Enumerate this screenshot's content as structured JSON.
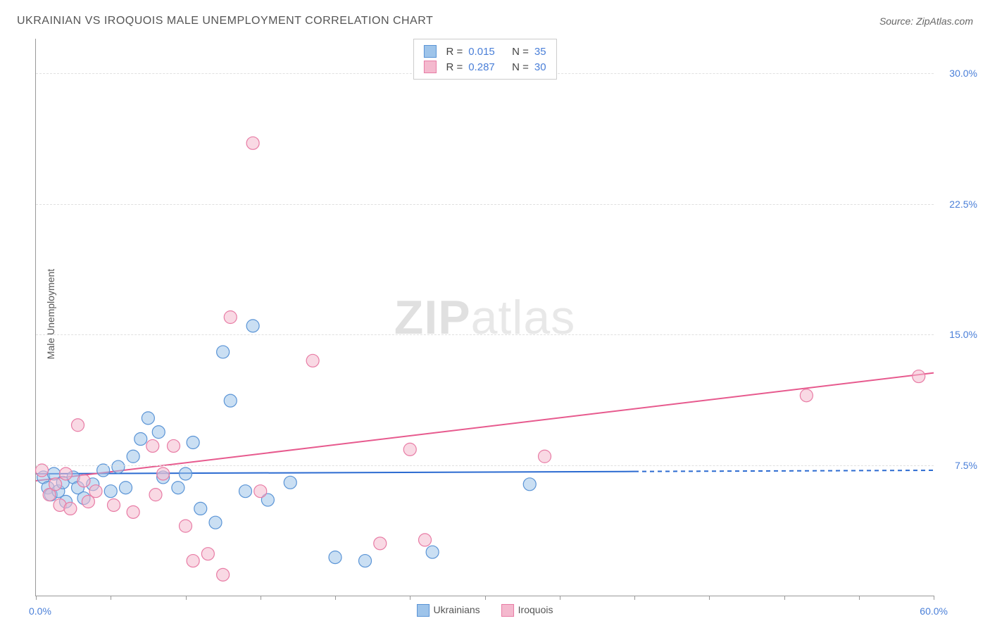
{
  "header": {
    "title": "UKRAINIAN VS IROQUOIS MALE UNEMPLOYMENT CORRELATION CHART",
    "source": "Source: ZipAtlas.com"
  },
  "watermark": {
    "bold": "ZIP",
    "rest": "atlas"
  },
  "chart": {
    "type": "scatter",
    "ylabel": "Male Unemployment",
    "xlim": [
      0,
      60
    ],
    "ylim": [
      0,
      32
    ],
    "background_color": "#ffffff",
    "grid_color": "#e0e0e0",
    "axis_color": "#999999",
    "label_color": "#4a7fd8",
    "yticks": [
      {
        "v": 7.5,
        "label": "7.5%"
      },
      {
        "v": 15.0,
        "label": "15.0%"
      },
      {
        "v": 22.5,
        "label": "22.5%"
      },
      {
        "v": 30.0,
        "label": "30.0%"
      }
    ],
    "xticks_positions": [
      0,
      5,
      10,
      15,
      20,
      25,
      30,
      35,
      40,
      45,
      50,
      55,
      60
    ],
    "xlabel_min": "0.0%",
    "xlabel_max": "60.0%",
    "marker_radius": 9,
    "marker_opacity": 0.55,
    "series": [
      {
        "name": "Ukrainians",
        "color_fill": "#9ec4ea",
        "color_stroke": "#5a94d6",
        "R": "0.015",
        "N": "35",
        "trend": {
          "y_start": 7.0,
          "y_end": 7.2,
          "color": "#2c6bd1",
          "width": 2,
          "solid_to_x": 40,
          "dash_after": true
        },
        "points": [
          [
            0.5,
            6.8
          ],
          [
            0.8,
            6.2
          ],
          [
            1.0,
            5.8
          ],
          [
            1.2,
            7.0
          ],
          [
            1.5,
            6.0
          ],
          [
            1.8,
            6.5
          ],
          [
            2.0,
            5.4
          ],
          [
            2.5,
            6.8
          ],
          [
            2.8,
            6.2
          ],
          [
            3.2,
            5.6
          ],
          [
            3.8,
            6.4
          ],
          [
            4.5,
            7.2
          ],
          [
            5.0,
            6.0
          ],
          [
            5.5,
            7.4
          ],
          [
            6.0,
            6.2
          ],
          [
            6.5,
            8.0
          ],
          [
            7.0,
            9.0
          ],
          [
            7.5,
            10.2
          ],
          [
            8.2,
            9.4
          ],
          [
            8.5,
            6.8
          ],
          [
            9.5,
            6.2
          ],
          [
            10.0,
            7.0
          ],
          [
            10.5,
            8.8
          ],
          [
            11.0,
            5.0
          ],
          [
            12.0,
            4.2
          ],
          [
            12.5,
            14.0
          ],
          [
            13.0,
            11.2
          ],
          [
            14.0,
            6.0
          ],
          [
            14.5,
            15.5
          ],
          [
            15.5,
            5.5
          ],
          [
            17.0,
            6.5
          ],
          [
            20.0,
            2.2
          ],
          [
            22.0,
            2.0
          ],
          [
            26.5,
            2.5
          ],
          [
            33.0,
            6.4
          ]
        ]
      },
      {
        "name": "Iroquois",
        "color_fill": "#f4b9ce",
        "color_stroke": "#e87ca5",
        "R": "0.287",
        "N": "30",
        "trend": {
          "y_start": 6.6,
          "y_end": 12.8,
          "color": "#e75a8e",
          "width": 2,
          "solid_to_x": 60,
          "dash_after": false
        },
        "points": [
          [
            0.4,
            7.2
          ],
          [
            0.9,
            5.8
          ],
          [
            1.3,
            6.4
          ],
          [
            1.6,
            5.2
          ],
          [
            2.0,
            7.0
          ],
          [
            2.3,
            5.0
          ],
          [
            2.8,
            9.8
          ],
          [
            3.2,
            6.6
          ],
          [
            3.5,
            5.4
          ],
          [
            4.0,
            6.0
          ],
          [
            5.2,
            5.2
          ],
          [
            6.5,
            4.8
          ],
          [
            7.8,
            8.6
          ],
          [
            8.0,
            5.8
          ],
          [
            8.5,
            7.0
          ],
          [
            9.2,
            8.6
          ],
          [
            10.0,
            4.0
          ],
          [
            10.5,
            2.0
          ],
          [
            11.5,
            2.4
          ],
          [
            12.5,
            1.2
          ],
          [
            13.0,
            16.0
          ],
          [
            14.5,
            26.0
          ],
          [
            15.0,
            6.0
          ],
          [
            18.5,
            13.5
          ],
          [
            23.0,
            3.0
          ],
          [
            25.0,
            8.4
          ],
          [
            26.0,
            3.2
          ],
          [
            51.5,
            11.5
          ],
          [
            59.0,
            12.6
          ],
          [
            34.0,
            8.0
          ]
        ]
      }
    ],
    "legend_top": {
      "r_label": "R =",
      "n_label": "N ="
    },
    "legend_bottom": {
      "items": [
        "Ukrainians",
        "Iroquois"
      ]
    }
  }
}
